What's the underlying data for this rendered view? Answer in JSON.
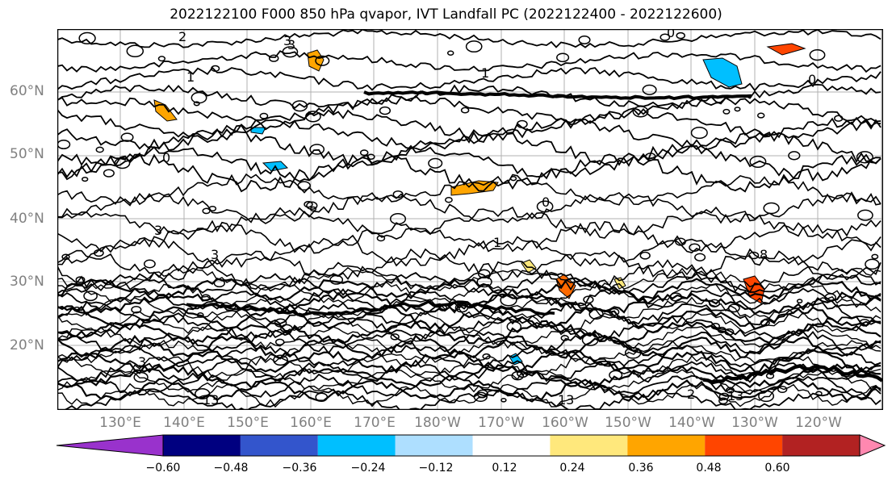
{
  "title": "2022122100 F000 850 hPa qvapor, IVT Landfall PC (2022122400 - 2022122600)",
  "map": {
    "lat_labels": [
      "60°N",
      "50°N",
      "40°N",
      "30°N",
      "20°N"
    ],
    "lon_labels": [
      "130°E",
      "140°E",
      "150°E",
      "160°E",
      "170°E",
      "180°W",
      "170°W",
      "160°W",
      "150°W",
      "140°W",
      "130°W",
      "120°W"
    ],
    "contour_labels": [
      "3",
      "1",
      "1",
      "0",
      "0",
      "0",
      "1",
      "3",
      "0",
      "3",
      "3",
      "2",
      "3",
      "13",
      "13",
      "13",
      "8",
      "2"
    ]
  },
  "colorbar": {
    "tick_labels": [
      "−0.60",
      "−0.48",
      "−0.36",
      "−0.24",
      "−0.12",
      "0.12",
      "0.24",
      "0.36",
      "0.48",
      "0.60"
    ],
    "colors": [
      "#9932cc",
      "#000080",
      "#3355cc",
      "#00bfff",
      "#aedfff",
      "#ffffff",
      "#ffe87c",
      "#ffa500",
      "#ff4500",
      "#b22222",
      "#ff88b0"
    ],
    "extend": "both"
  }
}
